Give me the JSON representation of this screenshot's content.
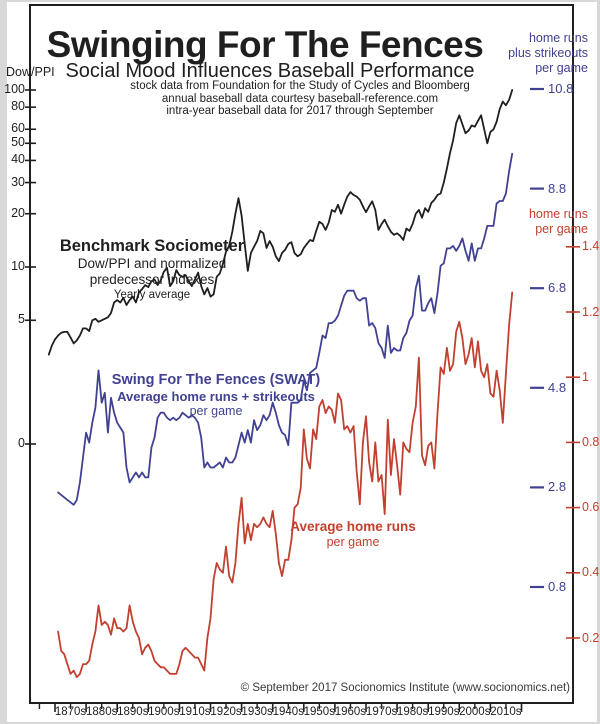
{
  "title": "Swinging For The Fences",
  "subtitle": "Social Mood Influences Baseball Performance",
  "source_notes": [
    "stock data from Foundation for the Study of Cycles and Bloomberg",
    "annual baseball data courtesy baseball-reference.com",
    "intra-year baseball data for 2017 through September"
  ],
  "copyright": "© September 2017 Socionomics Institute (www.socionomics.net)",
  "colors": {
    "black": "#1f1f1f",
    "blue": "#414192",
    "red": "#c2402f"
  },
  "left_axis": {
    "label": "Dow/PPI",
    "tick_labels": [
      "100",
      "80",
      "60",
      "50",
      "40",
      "30",
      "20",
      "10",
      "5",
      "0"
    ]
  },
  "x_axis": {
    "decade_labels": [
      "1870s",
      "1880s",
      "1890s",
      "1900s",
      "1910s",
      "1920s",
      "1930s",
      "1940s",
      "1950s",
      "1960s",
      "1970s",
      "1980s",
      "1990s",
      "2000s",
      "2010s"
    ]
  },
  "right_axis_blue": {
    "label_lines": [
      "home runs",
      "plus strikeouts",
      "per game"
    ],
    "ticks": [
      "10.8",
      "8.8",
      "6.8",
      "4.8",
      "2.8",
      "0.8"
    ]
  },
  "right_axis_red": {
    "label_lines": [
      "home runs",
      "per game"
    ],
    "ticks": [
      "1.4",
      "1.2",
      "1",
      "0.8",
      "0.6",
      "0.4",
      "0.2"
    ]
  },
  "annotations": {
    "benchmark": {
      "line1": "Benchmark Sociometer",
      "line2": "Dow/PPI and normalized",
      "line3": "predecessor indexes",
      "line4": "Yearly average"
    },
    "swat": {
      "line1": "Swing For The Fences (SWAT)",
      "line2": "Average home runs + strikeouts",
      "line3": "per game"
    },
    "homeruns": {
      "line1": "Average home runs",
      "line2": "per game"
    }
  },
  "chart_data": {
    "type": "line",
    "x_unit": "year",
    "x_range": [
      1868,
      2017
    ],
    "x_tick_decades": [
      1870,
      2010
    ],
    "left_axis": {
      "scale": "log",
      "tick_values": [
        100,
        80,
        60,
        50,
        40,
        30,
        20,
        10,
        5,
        0
      ]
    },
    "right_axis_blue": {
      "scale": "linear",
      "tick_values": [
        10.8,
        8.8,
        6.8,
        4.8,
        2.8,
        0.8
      ],
      "label": "home runs plus strikeouts per game"
    },
    "right_axis_red": {
      "scale": "linear",
      "tick_values": [
        1.4,
        1.2,
        1.0,
        0.8,
        0.6,
        0.4,
        0.2
      ],
      "label": "home runs per game"
    },
    "legend_position": "annotations-inline",
    "grid": false,
    "series": [
      {
        "name": "Benchmark Sociometer (Dow/PPI, yearly average)",
        "axis": "left-log",
        "color_key": "black",
        "start_year": 1868,
        "values": [
          3.2,
          3.6,
          3.9,
          4.1,
          4.25,
          4.3,
          4.3,
          4.0,
          3.7,
          3.85,
          4.1,
          4.5,
          4.5,
          4.35,
          5.0,
          5.1,
          4.9,
          5.0,
          5.1,
          5.2,
          5.5,
          6.3,
          6.5,
          6.3,
          6.7,
          6.1,
          6.5,
          6.8,
          6.3,
          7.2,
          7.5,
          7.9,
          7.7,
          8.3,
          8.5,
          7.9,
          8.4,
          9.4,
          9.9,
          7.8,
          8.3,
          9.6,
          9.0,
          8.8,
          9.0,
          8.3,
          7.8,
          8.5,
          9.3,
          7.8,
          7.0,
          7.6,
          6.8,
          7.0,
          8.8,
          9.2,
          10.4,
          12.2,
          13.2,
          15.8,
          20.0,
          24.5,
          19.5,
          13.5,
          9.5,
          12.0,
          13.0,
          14.0,
          16.0,
          15.5,
          12.8,
          14.0,
          13.0,
          11.5,
          10.8,
          12.0,
          12.5,
          13.5,
          13.8,
          12.0,
          11.5,
          11.8,
          12.8,
          13.5,
          14.2,
          14.0,
          16.0,
          18.0,
          17.5,
          16.2,
          17.8,
          21.0,
          20.5,
          22.5,
          20.0,
          22.5,
          25.0,
          26.5,
          25.5,
          25.0,
          24.0,
          22.0,
          20.4,
          22.0,
          23.5,
          21.0,
          16.2,
          17.5,
          18.5,
          17.0,
          15.8,
          15.2,
          15.5,
          15.0,
          14.2,
          16.5,
          16.0,
          17.5,
          20.0,
          21.0,
          19.0,
          21.5,
          20.5,
          23.0,
          24.0,
          25.5,
          26.0,
          30.0,
          36.0,
          44.0,
          52.0,
          65.0,
          72.0,
          64.0,
          57.0,
          59.0,
          63.0,
          62.0,
          67.0,
          72.0,
          60.0,
          50.0,
          58.0,
          60.0,
          66.0,
          78.0,
          86.0,
          82.0,
          88.0,
          100.0
        ]
      },
      {
        "name": "SWAT: average home runs + strikeouts per game",
        "axis": "right-blue",
        "color_key": "blue",
        "start_year": 1871,
        "values": [
          2.7,
          2.65,
          2.6,
          2.55,
          2.5,
          2.45,
          2.55,
          2.9,
          3.4,
          3.9,
          3.7,
          4.1,
          4.4,
          5.15,
          4.5,
          4.7,
          3.9,
          4.6,
          4.3,
          4.1,
          4.0,
          3.9,
          3.2,
          2.9,
          3.0,
          3.1,
          3.0,
          3.1,
          3.0,
          3.0,
          3.6,
          3.8,
          4.2,
          4.3,
          4.3,
          4.2,
          4.15,
          4.2,
          4.15,
          4.2,
          4.3,
          4.25,
          4.2,
          4.25,
          4.2,
          4.1,
          3.8,
          3.2,
          3.3,
          3.2,
          3.2,
          3.25,
          3.3,
          3.2,
          3.4,
          3.3,
          3.3,
          3.4,
          3.65,
          3.9,
          3.7,
          3.95,
          3.7,
          4.15,
          3.95,
          4.05,
          4.25,
          4.15,
          4.25,
          4.5,
          4.3,
          4.05,
          3.9,
          3.85,
          3.65,
          4.5,
          4.5,
          4.5,
          4.55,
          4.95,
          4.75,
          5.1,
          5.15,
          5.2,
          5.5,
          5.85,
          5.8,
          6.1,
          6.1,
          6.15,
          6.25,
          6.45,
          6.65,
          6.75,
          6.75,
          6.75,
          6.6,
          6.55,
          6.6,
          6.6,
          6.05,
          6.1,
          6.0,
          5.7,
          5.6,
          5.4,
          6.05,
          5.5,
          5.6,
          5.55,
          5.55,
          5.8,
          5.9,
          6.15,
          6.25,
          6.8,
          7.05,
          6.35,
          6.35,
          6.5,
          6.6,
          6.3,
          6.7,
          7.25,
          7.3,
          7.6,
          7.6,
          7.65,
          7.55,
          7.65,
          7.8,
          7.55,
          7.35,
          7.7,
          7.35,
          7.6,
          7.6,
          7.8,
          8.05,
          8.05,
          8.05,
          8.5,
          8.55,
          8.55,
          8.7,
          9.15,
          9.5
        ]
      },
      {
        "name": "Average home runs per game",
        "axis": "right-red",
        "color_key": "red",
        "start_year": 1871,
        "values": [
          0.22,
          0.16,
          0.15,
          0.12,
          0.09,
          0.1,
          0.08,
          0.09,
          0.12,
          0.12,
          0.13,
          0.18,
          0.22,
          0.3,
          0.24,
          0.25,
          0.24,
          0.21,
          0.26,
          0.23,
          0.23,
          0.22,
          0.23,
          0.3,
          0.25,
          0.22,
          0.2,
          0.15,
          0.17,
          0.18,
          0.16,
          0.13,
          0.12,
          0.11,
          0.11,
          0.1,
          0.09,
          0.09,
          0.09,
          0.12,
          0.16,
          0.17,
          0.16,
          0.15,
          0.14,
          0.14,
          0.12,
          0.1,
          0.2,
          0.26,
          0.38,
          0.43,
          0.41,
          0.4,
          0.48,
          0.39,
          0.37,
          0.43,
          0.55,
          0.63,
          0.49,
          0.55,
          0.5,
          0.55,
          0.54,
          0.55,
          0.57,
          0.55,
          0.54,
          0.59,
          0.52,
          0.43,
          0.39,
          0.44,
          0.44,
          0.5,
          0.6,
          0.61,
          0.66,
          0.84,
          0.75,
          0.72,
          0.84,
          0.81,
          0.91,
          0.93,
          0.89,
          0.91,
          0.9,
          0.86,
          0.95,
          0.93,
          0.84,
          0.85,
          0.83,
          0.85,
          0.71,
          0.61,
          0.8,
          0.88,
          0.74,
          0.68,
          0.8,
          0.68,
          0.7,
          0.58,
          0.87,
          0.7,
          0.81,
          0.73,
          0.64,
          0.8,
          0.78,
          0.77,
          0.86,
          0.91,
          1.06,
          0.76,
          0.73,
          0.79,
          0.8,
          0.72,
          0.89,
          1.03,
          1.01,
          1.09,
          1.02,
          1.04,
          1.14,
          1.17,
          1.12,
          1.04,
          1.07,
          1.12,
          1.03,
          1.11,
          1.02,
          1.0,
          1.04,
          0.95,
          0.94,
          1.02,
          0.96,
          0.86,
          1.01,
          1.16,
          1.26
        ]
      }
    ]
  }
}
